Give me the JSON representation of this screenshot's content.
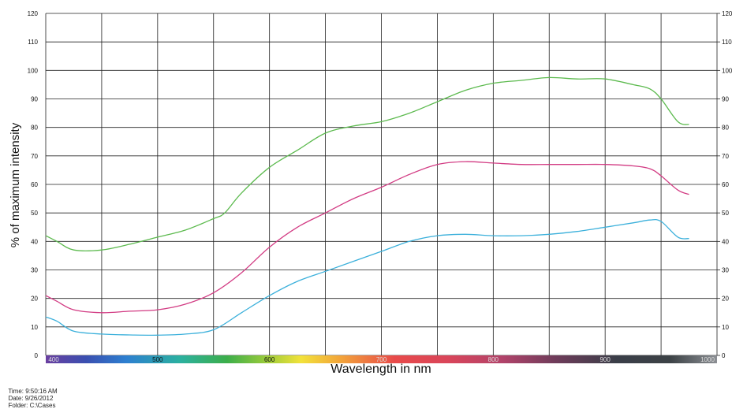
{
  "chart_data": {
    "type": "line",
    "xlabel": "Wavelength in nm",
    "ylabel": "% of maximum intensity",
    "xlim": [
      400,
      1000
    ],
    "ylim": [
      0,
      120
    ],
    "y_ticks": [
      0,
      10,
      20,
      30,
      40,
      50,
      60,
      70,
      80,
      90,
      100,
      110,
      120
    ],
    "x_tick_labels": [
      {
        "x": 400,
        "label": "400"
      },
      {
        "x": 500,
        "label": "500"
      },
      {
        "x": 600,
        "label": "600"
      },
      {
        "x": 700,
        "label": "700"
      },
      {
        "x": 800,
        "label": "800"
      },
      {
        "x": 900,
        "label": "900"
      },
      {
        "x": 1000,
        "label": "1000"
      }
    ],
    "grid": true,
    "right_axis_ticks": true,
    "spectrum_band": true,
    "series": [
      {
        "color": "#5cba4e",
        "x": [
          400,
          410,
          425,
          450,
          475,
          500,
          525,
          550,
          560,
          575,
          600,
          625,
          650,
          675,
          700,
          725,
          750,
          775,
          800,
          825,
          850,
          875,
          900,
          925,
          940,
          950,
          965,
          975
        ],
        "y": [
          42,
          40,
          37,
          37,
          39,
          41.5,
          44,
          48,
          50,
          57,
          66,
          72,
          78,
          80.5,
          82,
          85,
          89,
          93,
          95.5,
          96.5,
          97.5,
          97,
          97,
          95,
          93.5,
          90,
          82,
          81
        ]
      },
      {
        "color": "#d23b83",
        "x": [
          400,
          410,
          425,
          450,
          475,
          500,
          525,
          550,
          575,
          600,
          625,
          650,
          675,
          700,
          725,
          750,
          775,
          800,
          825,
          850,
          875,
          900,
          925,
          940,
          950,
          965,
          975
        ],
        "y": [
          21,
          19,
          16,
          15,
          15.5,
          16,
          18,
          22,
          29,
          38,
          45,
          50,
          55,
          59,
          63.5,
          67,
          68,
          67.5,
          67,
          67,
          67,
          67,
          66.5,
          65.5,
          63,
          58,
          56.5
        ]
      },
      {
        "color": "#3bb0db",
        "x": [
          400,
          410,
          425,
          450,
          475,
          500,
          525,
          550,
          575,
          600,
          625,
          650,
          675,
          700,
          725,
          750,
          775,
          800,
          825,
          850,
          875,
          900,
          925,
          940,
          950,
          965,
          975
        ],
        "y": [
          13.5,
          12,
          8.5,
          7.5,
          7.2,
          7.1,
          7.5,
          9,
          15,
          21,
          26,
          29.5,
          33,
          36.5,
          40,
          42,
          42.5,
          42,
          42,
          42.5,
          43.5,
          45,
          46.5,
          47.5,
          47,
          41.5,
          41
        ]
      }
    ]
  },
  "footer": {
    "time": "Time: 9:50:16 AM",
    "date": "Date: 9/26/2012",
    "folder": "Folder: C:\\Cases"
  }
}
